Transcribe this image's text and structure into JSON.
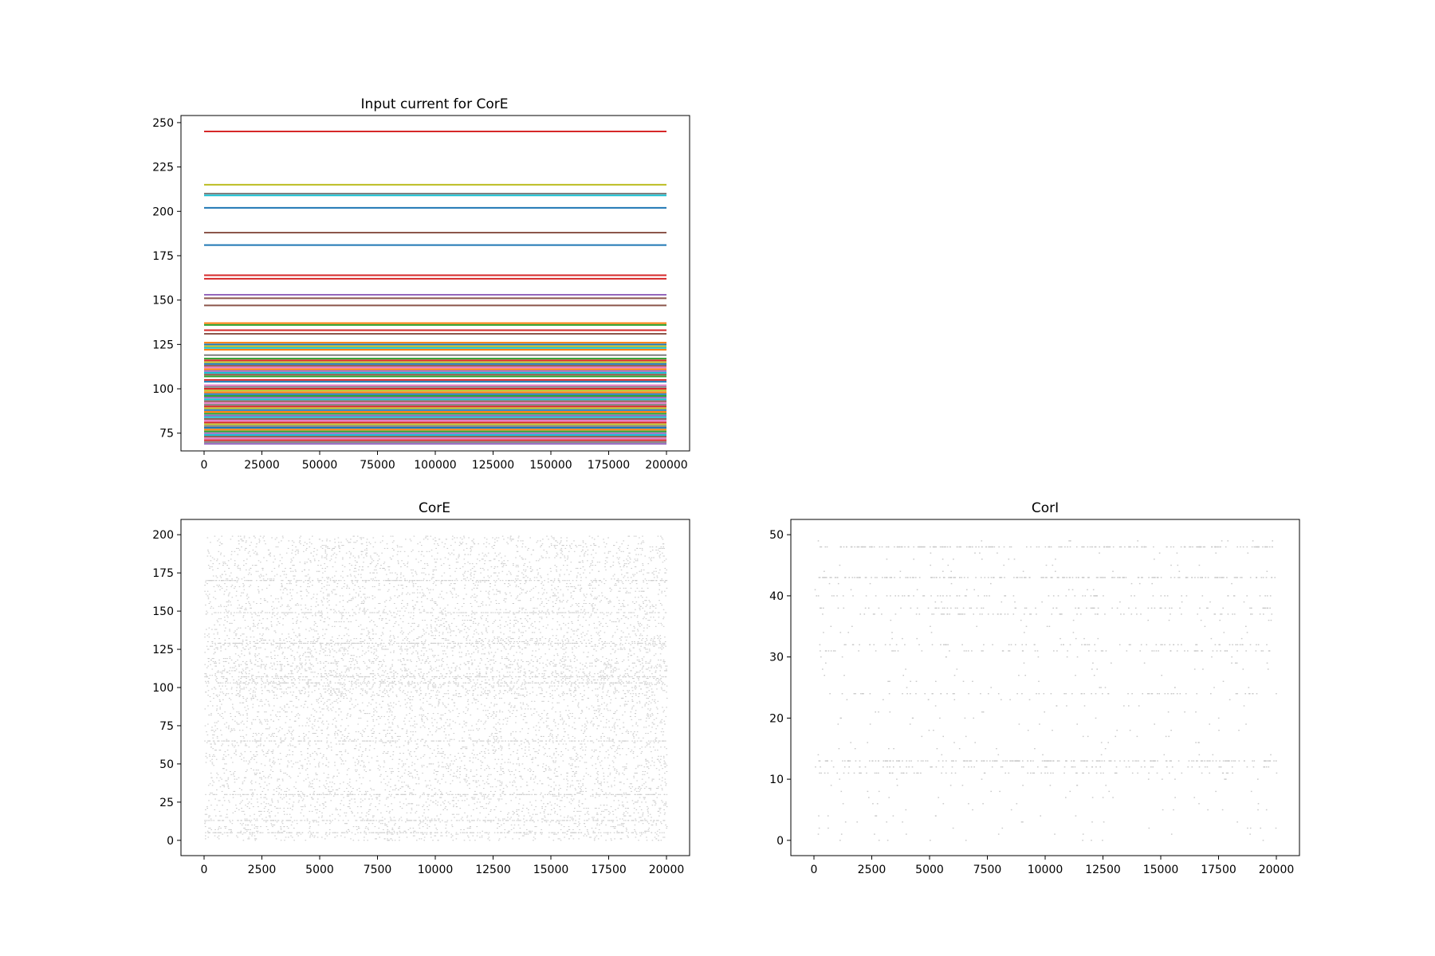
{
  "figure": {
    "background": "#ffffff"
  },
  "chart_data": [
    {
      "id": "input-current",
      "type": "line",
      "title": "Input current for CorE",
      "xlabel": "",
      "ylabel": "",
      "xlim": [
        -10000,
        210000
      ],
      "ylim": [
        65,
        254
      ],
      "x_ticks": [
        0,
        25000,
        50000,
        75000,
        100000,
        125000,
        150000,
        175000,
        200000
      ],
      "y_ticks": [
        75,
        100,
        125,
        150,
        175,
        200,
        225,
        250
      ],
      "x_range": [
        0,
        200000
      ],
      "grid": false,
      "legend": "none",
      "series": [
        {
          "value": 245,
          "color": "#d62728"
        },
        {
          "value": 215,
          "color": "#bcbd22"
        },
        {
          "value": 210,
          "color": "#7f7f7f"
        },
        {
          "value": 209,
          "color": "#17becf"
        },
        {
          "value": 202,
          "color": "#1f77b4"
        },
        {
          "value": 188,
          "color": "#8c564b"
        },
        {
          "value": 181,
          "color": "#1f77b4"
        },
        {
          "value": 164,
          "color": "#d62728"
        },
        {
          "value": 162,
          "color": "#d62728"
        },
        {
          "value": 153,
          "color": "#9467bd"
        },
        {
          "value": 151,
          "color": "#8c564b"
        },
        {
          "value": 147,
          "color": "#8c564b"
        },
        {
          "value": 137,
          "color": "#ff7f0e"
        },
        {
          "value": 136,
          "color": "#2ca02c"
        },
        {
          "value": 133,
          "color": "#d62728"
        },
        {
          "value": 131,
          "color": "#8c564b"
        },
        {
          "value": 126,
          "color": "#ff7f0e"
        },
        {
          "value": 125,
          "color": "#1f77b4"
        },
        {
          "value": 124,
          "color": "#bcbd22"
        },
        {
          "value": 123,
          "color": "#17becf"
        },
        {
          "value": 122,
          "color": "#ff7f0e"
        },
        {
          "value": 119,
          "color": "#7f7f7f"
        },
        {
          "value": 117,
          "color": "#2ca02c"
        },
        {
          "value": 116,
          "color": "#d62728"
        },
        {
          "value": 115,
          "color": "#bcbd22"
        },
        {
          "value": 114,
          "color": "#1f77b4"
        },
        {
          "value": 113,
          "color": "#8c564b"
        },
        {
          "value": 112,
          "color": "#e377c2"
        },
        {
          "value": 111,
          "color": "#ff7f0e"
        },
        {
          "value": 110,
          "color": "#9467bd"
        },
        {
          "value": 109,
          "color": "#17becf"
        },
        {
          "value": 108,
          "color": "#8c564b"
        },
        {
          "value": 107,
          "color": "#2ca02c"
        },
        {
          "value": 105,
          "color": "#d62728"
        },
        {
          "value": 104,
          "color": "#1f77b4"
        },
        {
          "value": 102,
          "color": "#e377c2"
        },
        {
          "value": 101,
          "color": "#7f7f7f"
        },
        {
          "value": 100,
          "color": "#d62728"
        },
        {
          "value": 99,
          "color": "#bcbd22"
        },
        {
          "value": 98,
          "color": "#ff7f0e"
        },
        {
          "value": 97,
          "color": "#1f77b4"
        },
        {
          "value": 96,
          "color": "#2ca02c"
        },
        {
          "value": 95,
          "color": "#9467bd"
        },
        {
          "value": 94,
          "color": "#17becf"
        },
        {
          "value": 93,
          "color": "#8c564b"
        },
        {
          "value": 92,
          "color": "#e377c2"
        },
        {
          "value": 91,
          "color": "#7f7f7f"
        },
        {
          "value": 90,
          "color": "#d62728"
        },
        {
          "value": 89,
          "color": "#bcbd22"
        },
        {
          "value": 88,
          "color": "#1f77b4"
        },
        {
          "value": 87,
          "color": "#ff7f0e"
        },
        {
          "value": 86,
          "color": "#2ca02c"
        },
        {
          "value": 85,
          "color": "#9467bd"
        },
        {
          "value": 84,
          "color": "#17becf"
        },
        {
          "value": 83,
          "color": "#8c564b"
        },
        {
          "value": 82,
          "color": "#e377c2"
        },
        {
          "value": 81,
          "color": "#d62728"
        },
        {
          "value": 80,
          "color": "#bcbd22"
        },
        {
          "value": 79,
          "color": "#7f7f7f"
        },
        {
          "value": 78,
          "color": "#1f77b4"
        },
        {
          "value": 77,
          "color": "#ff7f0e"
        },
        {
          "value": 76,
          "color": "#2ca02c"
        },
        {
          "value": 75,
          "color": "#9467bd"
        },
        {
          "value": 74,
          "color": "#17becf"
        },
        {
          "value": 73,
          "color": "#8c564b"
        },
        {
          "value": 72,
          "color": "#e377c2"
        },
        {
          "value": 71,
          "color": "#d62728"
        },
        {
          "value": 70,
          "color": "#7f7f7f"
        },
        {
          "value": 69,
          "color": "#9467bd"
        }
      ]
    },
    {
      "id": "core-raster",
      "type": "scatter",
      "title": "CorE",
      "xlabel": "",
      "ylabel": "",
      "xlim": [
        -1000,
        21000
      ],
      "ylim": [
        -10,
        210
      ],
      "x_ticks": [
        0,
        2500,
        5000,
        7500,
        10000,
        12500,
        15000,
        17500,
        20000
      ],
      "y_ticks": [
        0,
        25,
        50,
        75,
        100,
        125,
        150,
        175,
        200
      ],
      "x_range": [
        0,
        20000
      ],
      "marker_color": "#c8c8c8",
      "grid": false,
      "legend": "none",
      "neuron_count": 200,
      "dense_rows": [
        5,
        13,
        30,
        65,
        103,
        107,
        129,
        149,
        170
      ],
      "band_ranges": [
        [
          95,
          118
        ],
        [
          125,
          132
        ]
      ]
    },
    {
      "id": "cori-raster",
      "type": "scatter",
      "title": "CorI",
      "xlabel": "",
      "ylabel": "",
      "xlim": [
        -1000,
        21000
      ],
      "ylim": [
        -2.5,
        52.5
      ],
      "x_ticks": [
        0,
        2500,
        5000,
        7500,
        10000,
        12500,
        15000,
        17500,
        20000
      ],
      "y_ticks": [
        0,
        10,
        20,
        30,
        40,
        50
      ],
      "x_range": [
        0,
        20000
      ],
      "marker_color": "#c8c8c8",
      "grid": false,
      "legend": "none",
      "neuron_count": 50,
      "dense_rows": [
        13,
        43,
        48
      ],
      "medium_rows": [
        11,
        12,
        24,
        31,
        32,
        37,
        38,
        40
      ]
    }
  ]
}
